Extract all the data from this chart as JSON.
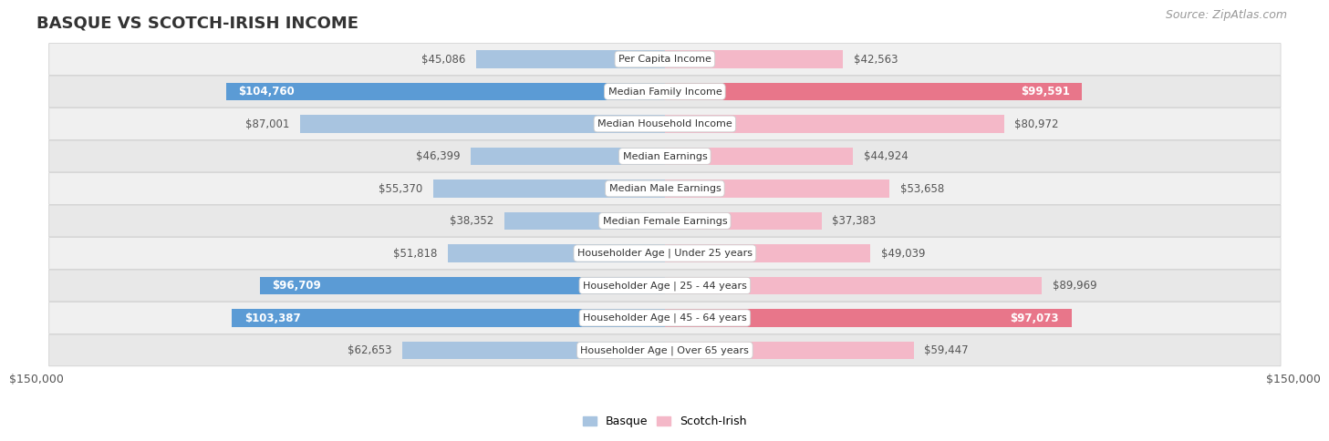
{
  "title": "BASQUE VS SCOTCH-IRISH INCOME",
  "source": "Source: ZipAtlas.com",
  "categories": [
    "Per Capita Income",
    "Median Family Income",
    "Median Household Income",
    "Median Earnings",
    "Median Male Earnings",
    "Median Female Earnings",
    "Householder Age | Under 25 years",
    "Householder Age | 25 - 44 years",
    "Householder Age | 45 - 64 years",
    "Householder Age | Over 65 years"
  ],
  "basque_values": [
    45086,
    104760,
    87001,
    46399,
    55370,
    38352,
    51818,
    96709,
    103387,
    62653
  ],
  "scotch_irish_values": [
    42563,
    99591,
    80972,
    44924,
    53658,
    37383,
    49039,
    89969,
    97073,
    59447
  ],
  "basque_labels": [
    "$45,086",
    "$104,760",
    "$87,001",
    "$46,399",
    "$55,370",
    "$38,352",
    "$51,818",
    "$96,709",
    "$103,387",
    "$62,653"
  ],
  "scotch_irish_labels": [
    "$42,563",
    "$99,591",
    "$80,972",
    "$44,924",
    "$53,658",
    "$37,383",
    "$49,039",
    "$89,969",
    "$97,073",
    "$59,447"
  ],
  "basque_color_light": "#a8c4e0",
  "basque_color_dark": "#5b9bd5",
  "scotch_irish_color_light": "#f4b8c8",
  "scotch_irish_color_dark": "#e8768a",
  "max_value": 150000,
  "bar_height": 0.55,
  "row_bg_even": "#f0f0f0",
  "row_bg_odd": "#e8e8e8",
  "legend_basque": "Basque",
  "legend_scotch_irish": "Scotch-Irish",
  "xlabel_left": "$150,000",
  "xlabel_right": "$150,000",
  "title_fontsize": 13,
  "label_fontsize": 8.5,
  "category_fontsize": 8.0,
  "source_fontsize": 9,
  "basque_text_threshold": 90000,
  "scotch_irish_text_threshold": 90000
}
